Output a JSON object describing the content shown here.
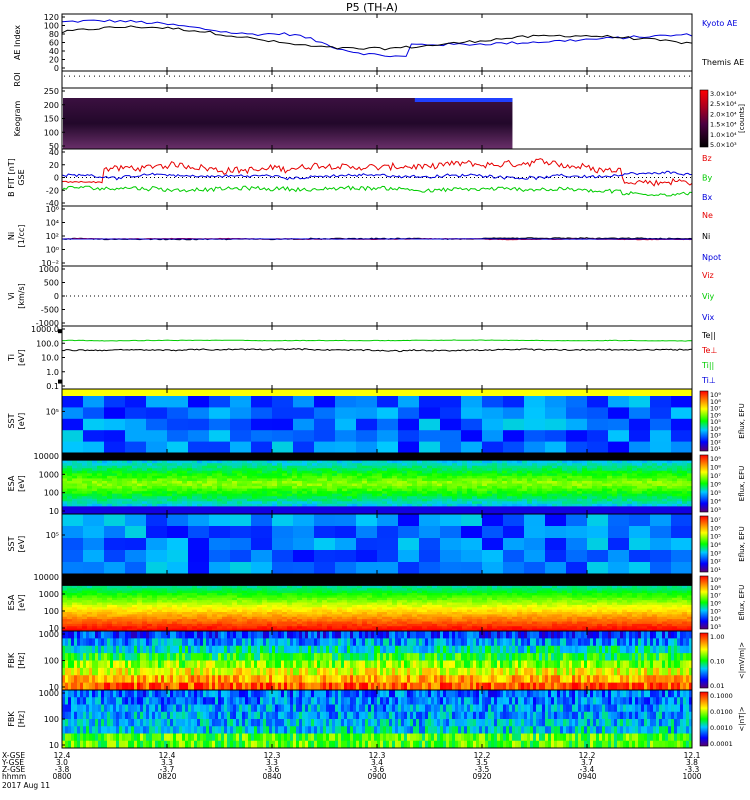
{
  "title": "P5 (TH-A)",
  "colors": {
    "red": "#e60000",
    "green": "#00cc00",
    "blue": "#0000dd",
    "black": "#000000"
  },
  "chart_data": {
    "type": "line",
    "x_ticks": [
      "0800",
      "0820",
      "0840",
      "0900",
      "0920",
      "0940",
      "1000"
    ],
    "footer": {
      "row_labels": [
        "X-GSE",
        "Y-GSE",
        "Z-GSE",
        "hhmm",
        "2017 Aug 11"
      ],
      "columns": [
        {
          "x": "12.4",
          "y": "3.0",
          "z": "-3.8",
          "t": "0800"
        },
        {
          "x": "12.4",
          "y": "3.3",
          "z": "-3.7",
          "t": "0820"
        },
        {
          "x": "12.3",
          "y": "3.3",
          "z": "-3.6",
          "t": "0840"
        },
        {
          "x": "12.3",
          "y": "3.4",
          "z": "-3.6",
          "t": "0900"
        },
        {
          "x": "12.2",
          "y": "3.5",
          "z": "-3.5",
          "t": "0920"
        },
        {
          "x": "12.2",
          "y": "3.7",
          "z": "-3.4",
          "t": "0940"
        },
        {
          "x": "12.1",
          "y": "3.8",
          "z": "-3.3",
          "t": "1000"
        }
      ]
    },
    "panels": [
      {
        "id": "ae",
        "ylabel": "AE Index",
        "yticks": [
          "120",
          "100",
          "80",
          "60",
          "40",
          "20",
          "0"
        ],
        "legend": [
          {
            "label": "Kyoto AE",
            "color": "#0000dd"
          },
          {
            "label": "Themis AE",
            "color": "#000000"
          }
        ]
      },
      {
        "id": "roi",
        "ylabel": "ROI"
      },
      {
        "id": "keogram",
        "ylabel": "Keogram",
        "yticks": [
          "250",
          "200",
          "150",
          "100",
          "50"
        ],
        "colorbar": {
          "ticks": [
            "3.0×10⁴",
            "2.5×10⁴",
            "2.0×10⁴",
            "1.5×10⁴",
            "1.0×10⁴",
            "5.0×10³"
          ],
          "unit": "[counts]"
        }
      },
      {
        "id": "bfgm",
        "ylabel": "B FIT [nT]",
        "ylabel2": "GSE",
        "yticks": [
          "40",
          "20",
          "0",
          "-20",
          "-40"
        ],
        "legend": [
          {
            "label": "Bz",
            "color": "#e60000"
          },
          {
            "label": "By",
            "color": "#00cc00"
          },
          {
            "label": "Bx",
            "color": "#0000dd"
          }
        ]
      },
      {
        "id": "ni",
        "ylabel": "Ni",
        "ylabel2": "[1/cc]",
        "yticks": [
          "10⁶",
          "10⁴",
          "10²",
          "10⁰",
          "10⁻²"
        ],
        "legend": [
          {
            "label": "Ne",
            "color": "#e60000"
          },
          {
            "label": "Ni",
            "color": "#000000"
          },
          {
            "label": "Npot",
            "color": "#0000dd"
          }
        ]
      },
      {
        "id": "vi",
        "ylabel": "Vi",
        "ylabel2": "[km/s]",
        "yticks": [
          "1000",
          "500",
          "0",
          "-500",
          "-1000"
        ],
        "legend": [
          {
            "label": "Viz",
            "color": "#e60000"
          },
          {
            "label": "Viy",
            "color": "#00cc00"
          },
          {
            "label": "Vix",
            "color": "#0000dd"
          }
        ]
      },
      {
        "id": "ti",
        "ylabel": "Ti",
        "ylabel2": "[eV]",
        "yticks": [
          "1000.0",
          "100.0",
          "10.0",
          "1.0",
          "0.1"
        ],
        "legend": [
          {
            "label": "Te||",
            "color": "#000000"
          },
          {
            "label": "Te⊥",
            "color": "#e60000"
          },
          {
            "label": "Ti||",
            "color": "#00cc00"
          },
          {
            "label": "Ti⊥",
            "color": "#0000dd"
          }
        ]
      },
      {
        "id": "sst_e",
        "ylabel": "SST",
        "ylabel2": "[eV]",
        "yticks": [
          "10⁵"
        ],
        "colorbar": {
          "ticks": [
            "10⁹",
            "10⁸",
            "10⁷",
            "10⁶",
            "10⁵",
            "10⁴",
            "10³",
            "10²",
            "10¹"
          ],
          "unit": "Eflux, EFU"
        }
      },
      {
        "id": "esa_e",
        "ylabel": "ESA",
        "ylabel2": "[eV]",
        "yticks": [
          "10000",
          "1000",
          "100",
          "10"
        ],
        "colorbar": {
          "ticks": [
            "10⁹",
            "10⁸",
            "10⁷",
            "10⁶",
            "10⁵",
            "10⁴",
            "10³"
          ],
          "unit": "Eflux, EFU"
        }
      },
      {
        "id": "sst_i",
        "ylabel": "SST",
        "ylabel2": "[eV]",
        "yticks": [
          "10⁵"
        ],
        "colorbar": {
          "ticks": [
            "10⁷",
            "10⁶",
            "10⁵",
            "10⁴",
            "10³",
            "10²",
            "10¹"
          ],
          "unit": "Eflux, EFU"
        }
      },
      {
        "id": "esa_i",
        "ylabel": "ESA",
        "ylabel2": "[eV]",
        "yticks": [
          "10000",
          "1000",
          "100",
          "10"
        ],
        "colorbar": {
          "ticks": [
            "10⁹",
            "10⁸",
            "10⁷",
            "10⁶",
            "10⁵",
            "10⁴",
            "10³"
          ],
          "unit": "Eflux, EFU"
        }
      },
      {
        "id": "fbk_e",
        "ylabel": "FBK",
        "ylabel2": "[Hz]",
        "yticks": [
          "1000",
          "100",
          "10"
        ],
        "colorbar": {
          "ticks": [
            "1.00",
            "0.10",
            "0.01"
          ],
          "unit": "<|mV/m|>"
        }
      },
      {
        "id": "fbk_b",
        "ylabel": "FBK",
        "ylabel2": "[Hz]",
        "yticks": [
          "1000",
          "100",
          "10"
        ],
        "colorbar": {
          "ticks": [
            "0.1000",
            "0.0100",
            "0.0010",
            "0.0001"
          ],
          "unit": "<|nT|>"
        }
      }
    ]
  }
}
